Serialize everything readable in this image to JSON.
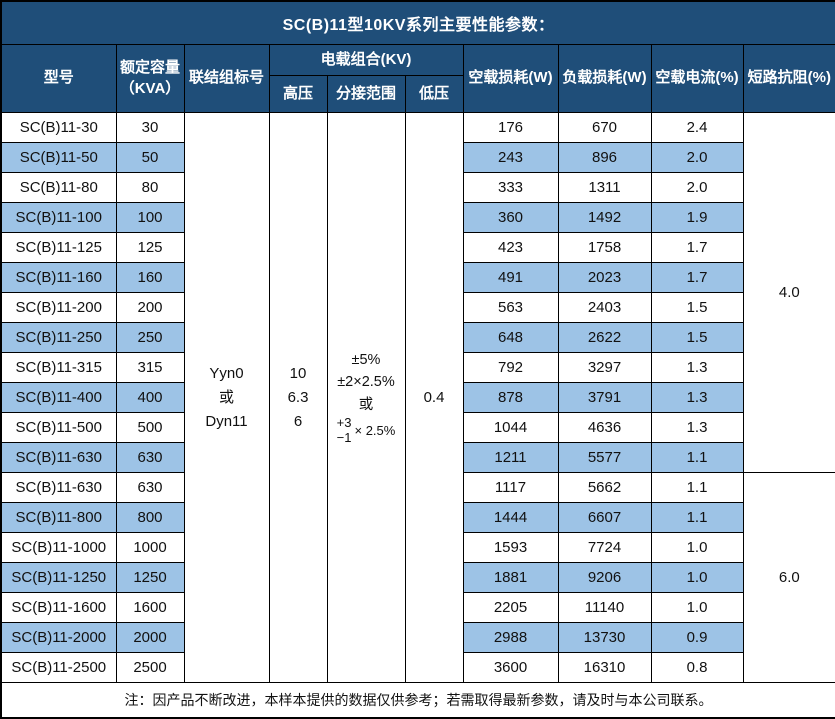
{
  "title": "SC(B)11型10KV系列主要性能参数：",
  "headers": {
    "model": "型号",
    "capacity": "额定容量\n（KVA）",
    "connection": "联结组标号",
    "voltage_combo": "电载组合(KV)",
    "hv": "高压",
    "tap_range": "分接范围",
    "lv": "低压",
    "no_load_loss": "空载损耗(W)",
    "load_loss": "负载损耗(W)",
    "no_load_current": "空载电流(%)",
    "impedance": "短路抗阻(%)"
  },
  "merged": {
    "connection": "Yyn0\n或\nDyn11",
    "hv": "10\n6.3\n6",
    "tap": {
      "line1": "±5%",
      "line2": "±2×2.5%",
      "line3": "或",
      "stack_top": "+3",
      "stack_bottom": "−1",
      "stack_right": "× 2.5%"
    },
    "lv": "0.4",
    "impedance_groups": [
      {
        "value": "4.0",
        "row_span": 12
      },
      {
        "value": "6.0",
        "row_span": 7
      }
    ]
  },
  "rows": [
    {
      "model": "SC(B)11-30",
      "kva": "30",
      "no_load_loss": "176",
      "load_loss": "670",
      "no_load_current": "2.4"
    },
    {
      "model": "SC(B)11-50",
      "kva": "50",
      "no_load_loss": "243",
      "load_loss": "896",
      "no_load_current": "2.0"
    },
    {
      "model": "SC(B)11-80",
      "kva": "80",
      "no_load_loss": "333",
      "load_loss": "1311",
      "no_load_current": "2.0"
    },
    {
      "model": "SC(B)11-100",
      "kva": "100",
      "no_load_loss": "360",
      "load_loss": "1492",
      "no_load_current": "1.9"
    },
    {
      "model": "SC(B)11-125",
      "kva": "125",
      "no_load_loss": "423",
      "load_loss": "1758",
      "no_load_current": "1.7"
    },
    {
      "model": "SC(B)11-160",
      "kva": "160",
      "no_load_loss": "491",
      "load_loss": "2023",
      "no_load_current": "1.7"
    },
    {
      "model": "SC(B)11-200",
      "kva": "200",
      "no_load_loss": "563",
      "load_loss": "2403",
      "no_load_current": "1.5"
    },
    {
      "model": "SC(B)11-250",
      "kva": "250",
      "no_load_loss": "648",
      "load_loss": "2622",
      "no_load_current": "1.5"
    },
    {
      "model": "SC(B)11-315",
      "kva": "315",
      "no_load_loss": "792",
      "load_loss": "3297",
      "no_load_current": "1.3"
    },
    {
      "model": "SC(B)11-400",
      "kva": "400",
      "no_load_loss": "878",
      "load_loss": "3791",
      "no_load_current": "1.3"
    },
    {
      "model": "SC(B)11-500",
      "kva": "500",
      "no_load_loss": "1044",
      "load_loss": "4636",
      "no_load_current": "1.3"
    },
    {
      "model": "SC(B)11-630",
      "kva": "630",
      "no_load_loss": "1211",
      "load_loss": "5577",
      "no_load_current": "1.1"
    },
    {
      "model": "SC(B)11-630",
      "kva": "630",
      "no_load_loss": "1117",
      "load_loss": "5662",
      "no_load_current": "1.1"
    },
    {
      "model": "SC(B)11-800",
      "kva": "800",
      "no_load_loss": "1444",
      "load_loss": "6607",
      "no_load_current": "1.1"
    },
    {
      "model": "SC(B)11-1000",
      "kva": "1000",
      "no_load_loss": "1593",
      "load_loss": "7724",
      "no_load_current": "1.0"
    },
    {
      "model": "SC(B)11-1250",
      "kva": "1250",
      "no_load_loss": "1881",
      "load_loss": "9206",
      "no_load_current": "1.0"
    },
    {
      "model": "SC(B)11-1600",
      "kva": "1600",
      "no_load_loss": "2205",
      "load_loss": "11140",
      "no_load_current": "1.0"
    },
    {
      "model": "SC(B)11-2000",
      "kva": "2000",
      "no_load_loss": "2988",
      "load_loss": "13730",
      "no_load_current": "0.9"
    },
    {
      "model": "SC(B)11-2500",
      "kva": "2500",
      "no_load_loss": "3600",
      "load_loss": "16310",
      "no_load_current": "0.8"
    }
  ],
  "note": "注：因产品不断改进，本样本提供的数据仅供参考；若需取得最新参数，请及时与本公司联系。",
  "colors": {
    "header_bg": "#1F4E79",
    "stripe_bg": "#9DC3E6",
    "border": "#000000",
    "header_text": "#FFFFFF"
  }
}
